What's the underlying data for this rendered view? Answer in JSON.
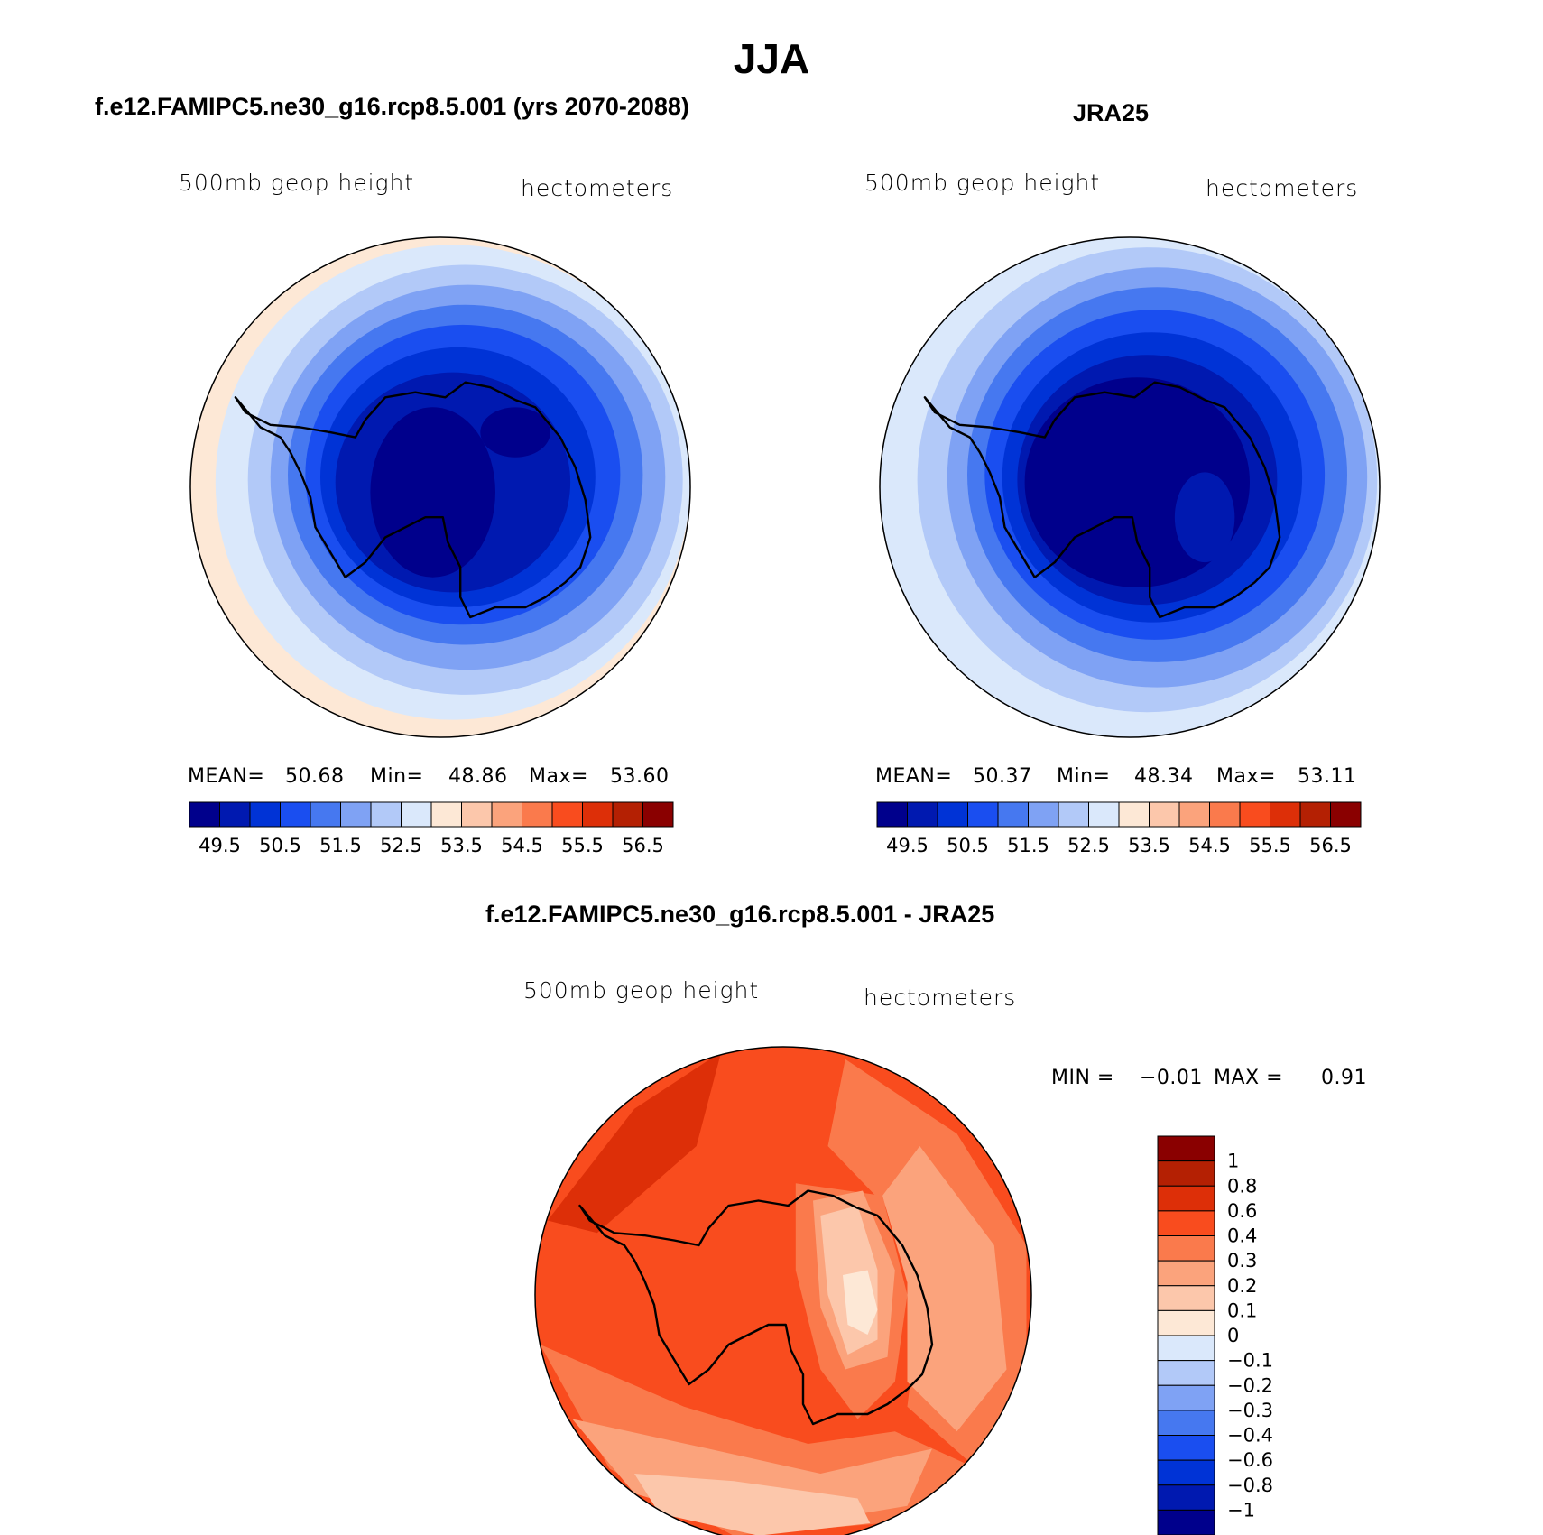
{
  "main_title": "JJA",
  "colors": {
    "abs_scale": [
      "#00008c",
      "#0019b0",
      "#0033d6",
      "#1a4ef0",
      "#4678f0",
      "#7fa2f4",
      "#b2c9f8",
      "#dae8fb",
      "#fde8d6",
      "#fcc7ab",
      "#fba37c",
      "#fa7a4c",
      "#f94c1e",
      "#dd2f08",
      "#b42003",
      "#8a0000"
    ],
    "diff_scale": [
      "#00008c",
      "#0019b0",
      "#0033d6",
      "#1a4ef0",
      "#4678f0",
      "#7fa2f4",
      "#b2c9f8",
      "#dae8fb",
      "#fde8d6",
      "#fcc7ab",
      "#fba37c",
      "#fa7a4c",
      "#f94c1e",
      "#dd2f08",
      "#b42003",
      "#8a0000"
    ],
    "outline": "#000000"
  },
  "chart_data": [
    {
      "type": "heatmap",
      "title": "f.e12.FAMIPC5.ne30_g16.rcp8.5.001 (yrs 2070-2088)",
      "variable": "500mb  geop  height",
      "units": "hectometers",
      "projection": "south polar stereographic",
      "stats": {
        "mean_label": "MEAN=",
        "mean": "50.68",
        "min_label": "Min=",
        "min": "48.86",
        "max_label": "Max=",
        "max": "53.60"
      },
      "contour_levels": [
        "49.5",
        "50.5",
        "51.5",
        "52.5",
        "53.5",
        "54.5",
        "55.5",
        "56.5"
      ],
      "rings": [
        {
          "bin": 8,
          "rx": 1.0,
          "ry": 1.0,
          "dx": 0.0,
          "dy": 0.0
        },
        {
          "bin": 7,
          "rx": 0.95,
          "ry": 0.95,
          "dx": 0.05,
          "dy": -0.02
        },
        {
          "bin": 6,
          "rx": 0.87,
          "ry": 0.86,
          "dx": 0.1,
          "dy": -0.03
        },
        {
          "bin": 5,
          "rx": 0.79,
          "ry": 0.77,
          "dx": 0.11,
          "dy": -0.04
        },
        {
          "bin": 4,
          "rx": 0.71,
          "ry": 0.68,
          "dx": 0.1,
          "dy": -0.05
        },
        {
          "bin": 3,
          "rx": 0.63,
          "ry": 0.6,
          "dx": 0.09,
          "dy": -0.05
        },
        {
          "bin": 2,
          "rx": 0.55,
          "ry": 0.52,
          "dx": 0.07,
          "dy": -0.04
        },
        {
          "bin": 1,
          "rx": 0.47,
          "ry": 0.44,
          "dx": 0.05,
          "dy": -0.02
        },
        {
          "bin": 0,
          "rx": 0.25,
          "ry": 0.34,
          "dx": -0.03,
          "dy": 0.02
        }
      ]
    },
    {
      "type": "heatmap",
      "title": "JRA25",
      "variable": "500mb  geop  height",
      "units": "hectometers",
      "projection": "south polar stereographic",
      "stats": {
        "mean_label": "MEAN=",
        "mean": "50.37",
        "min_label": "Min=",
        "min": "48.34",
        "max_label": "Max=",
        "max": "53.11"
      },
      "contour_levels": [
        "49.5",
        "50.5",
        "51.5",
        "52.5",
        "53.5",
        "54.5",
        "55.5",
        "56.5"
      ],
      "rings": [
        {
          "bin": 7,
          "rx": 1.0,
          "ry": 1.0,
          "dx": 0.0,
          "dy": 0.0
        },
        {
          "bin": 6,
          "rx": 0.92,
          "ry": 0.93,
          "dx": 0.07,
          "dy": -0.03
        },
        {
          "bin": 5,
          "rx": 0.84,
          "ry": 0.84,
          "dx": 0.11,
          "dy": -0.04
        },
        {
          "bin": 4,
          "rx": 0.76,
          "ry": 0.75,
          "dx": 0.11,
          "dy": -0.05
        },
        {
          "bin": 3,
          "rx": 0.68,
          "ry": 0.66,
          "dx": 0.1,
          "dy": -0.05
        },
        {
          "bin": 2,
          "rx": 0.6,
          "ry": 0.58,
          "dx": 0.09,
          "dy": -0.04
        },
        {
          "bin": 1,
          "rx": 0.52,
          "ry": 0.5,
          "dx": 0.07,
          "dy": -0.03
        },
        {
          "bin": 0,
          "rx": 0.45,
          "ry": 0.42,
          "dx": 0.03,
          "dy": -0.02
        }
      ]
    },
    {
      "type": "heatmap",
      "title": "f.e12.FAMIPC5.ne30_g16.rcp8.5.001 - JRA25",
      "variable": "500mb  geop  height",
      "units": "hectometers",
      "projection": "south polar stereographic",
      "stats": {
        "min_label": "MIN =",
        "min": "−0.01",
        "max_label": "MAX =",
        "max": "0.91"
      },
      "contour_levels": [
        "1",
        "0.8",
        "0.6",
        "0.4",
        "0.3",
        "0.2",
        "0.1",
        "0",
        "−0.1",
        "−0.2",
        "−0.3",
        "−0.4",
        "−0.6",
        "−0.8",
        "−1"
      ],
      "regions": [
        {
          "bin": 12,
          "shape": "disk"
        },
        {
          "bin": 13,
          "shape": "blob",
          "points": [
            [
              -0.95,
              -0.3
            ],
            [
              -0.6,
              -0.75
            ],
            [
              -0.25,
              -0.98
            ],
            [
              -0.35,
              -0.6
            ],
            [
              -0.75,
              -0.25
            ]
          ]
        },
        {
          "bin": 11,
          "shape": "blob",
          "points": [
            [
              0.25,
              -0.95
            ],
            [
              0.7,
              -0.65
            ],
            [
              0.98,
              -0.2
            ],
            [
              0.98,
              0.35
            ],
            [
              0.78,
              0.7
            ],
            [
              0.5,
              0.45
            ],
            [
              0.55,
              0.05
            ],
            [
              0.42,
              -0.35
            ],
            [
              0.18,
              -0.6
            ]
          ]
        },
        {
          "bin": 11,
          "shape": "blob",
          "points": [
            [
              -0.98,
              0.2
            ],
            [
              -0.4,
              0.45
            ],
            [
              0.1,
              0.6
            ],
            [
              0.45,
              0.55
            ],
            [
              0.78,
              0.7
            ],
            [
              0.4,
              0.92
            ],
            [
              -0.2,
              0.97
            ],
            [
              -0.7,
              0.7
            ]
          ]
        },
        {
          "bin": 10,
          "shape": "blob",
          "points": [
            [
              0.55,
              -0.6
            ],
            [
              0.85,
              -0.2
            ],
            [
              0.9,
              0.3
            ],
            [
              0.7,
              0.55
            ],
            [
              0.5,
              0.35
            ],
            [
              0.5,
              -0.05
            ],
            [
              0.4,
              -0.4
            ]
          ]
        },
        {
          "bin": 10,
          "shape": "blob",
          "points": [
            [
              -0.85,
              0.5
            ],
            [
              -0.3,
              0.62
            ],
            [
              0.15,
              0.72
            ],
            [
              0.6,
              0.62
            ],
            [
              0.5,
              0.85
            ],
            [
              -0.1,
              0.95
            ],
            [
              -0.6,
              0.8
            ]
          ]
        },
        {
          "bin": 9,
          "shape": "blob",
          "points": [
            [
              -0.6,
              0.72
            ],
            [
              -0.2,
              0.75
            ],
            [
              0.3,
              0.82
            ],
            [
              0.35,
              0.92
            ],
            [
              -0.1,
              0.97
            ],
            [
              -0.5,
              0.88
            ]
          ]
        },
        {
          "bin": 11,
          "shape": "blob",
          "points": [
            [
              0.05,
              -0.45
            ],
            [
              0.4,
              -0.4
            ],
            [
              0.5,
              0.0
            ],
            [
              0.45,
              0.35
            ],
            [
              0.3,
              0.5
            ],
            [
              0.15,
              0.3
            ],
            [
              0.05,
              -0.1
            ]
          ]
        },
        {
          "bin": 10,
          "shape": "blob",
          "points": [
            [
              0.12,
              -0.38
            ],
            [
              0.32,
              -0.42
            ],
            [
              0.45,
              -0.1
            ],
            [
              0.42,
              0.25
            ],
            [
              0.25,
              0.3
            ],
            [
              0.15,
              0.05
            ]
          ]
        },
        {
          "bin": 9,
          "shape": "blob",
          "points": [
            [
              0.15,
              -0.32
            ],
            [
              0.3,
              -0.36
            ],
            [
              0.38,
              -0.1
            ],
            [
              0.38,
              0.18
            ],
            [
              0.26,
              0.24
            ],
            [
              0.18,
              0.0
            ]
          ]
        },
        {
          "bin": 8,
          "shape": "blob",
          "points": [
            [
              0.24,
              -0.08
            ],
            [
              0.34,
              -0.1
            ],
            [
              0.38,
              0.06
            ],
            [
              0.34,
              0.16
            ],
            [
              0.26,
              0.12
            ]
          ]
        }
      ]
    }
  ]
}
